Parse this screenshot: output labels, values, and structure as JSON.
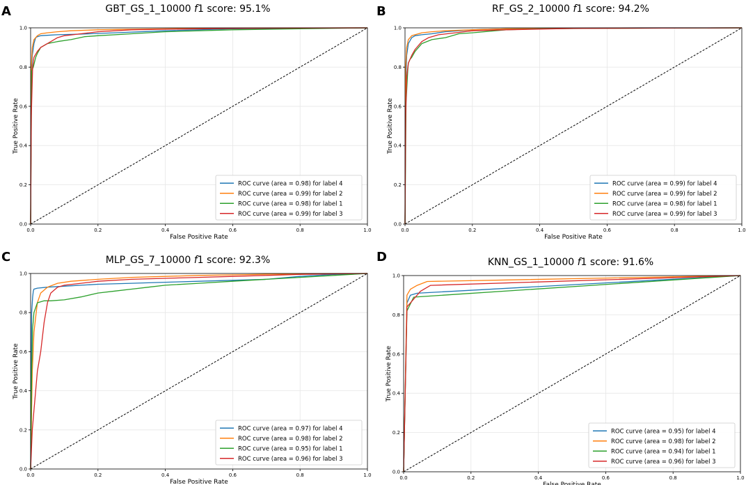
{
  "colors": {
    "label4": "#1f77b4",
    "label2": "#ff7f0e",
    "label1": "#2ca02c",
    "label3": "#d62728",
    "chance": "#000000"
  },
  "chart_data": [
    {
      "panel": "A",
      "type": "line",
      "title_parts": {
        "prefix": "GBT_GS_1_10000 ",
        "italic": "f",
        "suffix": "1 score: 95.1%"
      },
      "xlabel": "False Positive Rate",
      "ylabel": "True Positive Rate",
      "xlim": [
        0,
        1
      ],
      "ylim": [
        0,
        1
      ],
      "xticks": [
        "0.0",
        "0.2",
        "0.4",
        "0.6",
        "0.8",
        "1.0"
      ],
      "yticks": [
        "0.0",
        "0.2",
        "0.4",
        "0.6",
        "0.8",
        "1.0"
      ],
      "legend_position": "lower-right",
      "series": [
        {
          "name": "ROC curve (area = 0.98) for label 4",
          "color_key": "label4",
          "x": [
            0,
            0.002,
            0.005,
            0.01,
            0.015,
            0.02,
            0.03,
            0.05,
            0.08,
            0.15,
            0.25,
            0.4,
            0.6,
            0.8,
            1.0
          ],
          "y": [
            0,
            0.75,
            0.86,
            0.92,
            0.95,
            0.955,
            0.96,
            0.962,
            0.965,
            0.968,
            0.975,
            0.985,
            0.995,
            0.998,
            1.0
          ]
        },
        {
          "name": "ROC curve (area = 0.99) for label 2",
          "color_key": "label2",
          "x": [
            0,
            0.002,
            0.005,
            0.01,
            0.02,
            0.03,
            0.05,
            0.08,
            0.12,
            0.2,
            0.3,
            0.5,
            0.7,
            1.0
          ],
          "y": [
            0,
            0.8,
            0.9,
            0.94,
            0.96,
            0.97,
            0.975,
            0.98,
            0.985,
            0.99,
            0.993,
            0.997,
            0.999,
            1.0
          ]
        },
        {
          "name": "ROC curve (area = 0.98) for label 1",
          "color_key": "label1",
          "x": [
            0,
            0.003,
            0.008,
            0.015,
            0.02,
            0.03,
            0.05,
            0.08,
            0.12,
            0.16,
            0.2,
            0.3,
            0.4,
            0.6,
            0.8,
            1.0
          ],
          "y": [
            0,
            0.78,
            0.8,
            0.85,
            0.87,
            0.9,
            0.92,
            0.93,
            0.94,
            0.955,
            0.96,
            0.97,
            0.98,
            0.99,
            0.995,
            1.0
          ]
        },
        {
          "name": "ROC curve (area = 0.99) for label 3",
          "color_key": "label3",
          "x": [
            0,
            0.002,
            0.006,
            0.01,
            0.02,
            0.03,
            0.05,
            0.08,
            0.1,
            0.15,
            0.2,
            0.3,
            0.4,
            0.6,
            0.8,
            1.0
          ],
          "y": [
            0,
            0.55,
            0.8,
            0.85,
            0.88,
            0.9,
            0.92,
            0.95,
            0.96,
            0.97,
            0.98,
            0.99,
            0.993,
            0.997,
            0.999,
            1.0
          ]
        }
      ]
    },
    {
      "panel": "B",
      "type": "line",
      "title_parts": {
        "prefix": "RF_GS_2_10000 ",
        "italic": "f",
        "suffix": "1 score: 94.2%"
      },
      "xlabel": "False Positive Rate",
      "ylabel": "True Positive Rate",
      "xlim": [
        0,
        1
      ],
      "ylim": [
        0,
        1
      ],
      "xticks": [
        "0.0",
        "0.2",
        "0.4",
        "0.6",
        "0.8",
        "1.0"
      ],
      "yticks": [
        "0.0",
        "0.2",
        "0.4",
        "0.6",
        "0.8",
        "1.0"
      ],
      "legend_position": "lower-right",
      "series": [
        {
          "name": "ROC curve (area = 0.99) for label 4",
          "color_key": "label4",
          "x": [
            0,
            0.002,
            0.005,
            0.01,
            0.02,
            0.03,
            0.05,
            0.08,
            0.12,
            0.2,
            0.3,
            0.5,
            0.7,
            1.0
          ],
          "y": [
            0,
            0.7,
            0.86,
            0.92,
            0.95,
            0.96,
            0.965,
            0.97,
            0.98,
            0.99,
            0.995,
            0.998,
            1.0,
            1.0
          ]
        },
        {
          "name": "ROC curve (area = 0.99) for label 2",
          "color_key": "label2",
          "x": [
            0,
            0.002,
            0.005,
            0.01,
            0.02,
            0.03,
            0.05,
            0.08,
            0.12,
            0.2,
            0.3,
            0.5,
            1.0
          ],
          "y": [
            0,
            0.8,
            0.9,
            0.94,
            0.96,
            0.965,
            0.975,
            0.98,
            0.985,
            0.99,
            0.995,
            0.998,
            1.0
          ]
        },
        {
          "name": "ROC curve (area = 0.98) for label 1",
          "color_key": "label1",
          "x": [
            0,
            0.003,
            0.008,
            0.01,
            0.015,
            0.02,
            0.03,
            0.05,
            0.08,
            0.12,
            0.16,
            0.2,
            0.3,
            0.4,
            0.6,
            1.0
          ],
          "y": [
            0,
            0.62,
            0.78,
            0.82,
            0.84,
            0.85,
            0.88,
            0.92,
            0.94,
            0.95,
            0.97,
            0.975,
            0.99,
            0.995,
            0.998,
            1.0
          ]
        },
        {
          "name": "ROC curve (area = 0.99) for label 3",
          "color_key": "label3",
          "x": [
            0,
            0.002,
            0.005,
            0.01,
            0.02,
            0.03,
            0.05,
            0.07,
            0.1,
            0.15,
            0.2,
            0.3,
            0.5,
            1.0
          ],
          "y": [
            0,
            0.55,
            0.75,
            0.82,
            0.86,
            0.89,
            0.93,
            0.95,
            0.965,
            0.975,
            0.985,
            0.99,
            0.997,
            1.0
          ]
        }
      ]
    },
    {
      "panel": "C",
      "type": "line",
      "title_parts": {
        "prefix": "MLP_GS_7_10000 ",
        "italic": "f",
        "suffix": "1 score: 92.3%"
      },
      "xlabel": "False Positive Rate",
      "ylabel": "True Positive Rate",
      "xlim": [
        0,
        1
      ],
      "ylim": [
        0,
        1
      ],
      "xticks": [
        "0.0",
        "0.2",
        "0.4",
        "0.6",
        "0.8",
        "1.0"
      ],
      "yticks": [
        "0.0",
        "0.2",
        "0.4",
        "0.6",
        "0.8",
        "1.0"
      ],
      "legend_position": "lower-right",
      "series": [
        {
          "name": "ROC curve (area = 0.97) for label 4",
          "color_key": "label4",
          "x": [
            0,
            0.003,
            0.006,
            0.008,
            0.01,
            0.02,
            0.05,
            0.1,
            0.15,
            0.2,
            0.3,
            0.4,
            0.5,
            0.6,
            0.7,
            0.8,
            0.9,
            1.0
          ],
          "y": [
            0,
            0.8,
            0.88,
            0.91,
            0.92,
            0.925,
            0.93,
            0.935,
            0.94,
            0.945,
            0.95,
            0.955,
            0.96,
            0.965,
            0.97,
            0.985,
            0.995,
            1.0
          ]
        },
        {
          "name": "ROC curve (area = 0.98) for label 2",
          "color_key": "label2",
          "x": [
            0,
            0.005,
            0.01,
            0.02,
            0.03,
            0.05,
            0.08,
            0.12,
            0.2,
            0.3,
            0.4,
            0.5,
            0.6,
            0.7,
            0.8,
            1.0
          ],
          "y": [
            0,
            0.5,
            0.7,
            0.85,
            0.9,
            0.93,
            0.95,
            0.96,
            0.97,
            0.98,
            0.985,
            0.99,
            0.993,
            0.996,
            0.998,
            1.0
          ]
        },
        {
          "name": "ROC curve (area = 0.95) for label 1",
          "color_key": "label1",
          "x": [
            0,
            0.003,
            0.006,
            0.01,
            0.02,
            0.04,
            0.06,
            0.1,
            0.15,
            0.2,
            0.25,
            0.3,
            0.35,
            0.4,
            0.5,
            0.6,
            0.7,
            0.8,
            0.9,
            1.0
          ],
          "y": [
            0,
            0.5,
            0.72,
            0.8,
            0.85,
            0.86,
            0.86,
            0.865,
            0.88,
            0.9,
            0.91,
            0.92,
            0.93,
            0.94,
            0.95,
            0.96,
            0.97,
            0.98,
            0.99,
            1.0
          ]
        },
        {
          "name": "ROC curve (area = 0.96) for label 3",
          "color_key": "label3",
          "x": [
            0,
            0.005,
            0.01,
            0.02,
            0.03,
            0.04,
            0.05,
            0.06,
            0.08,
            0.1,
            0.15,
            0.2,
            0.3,
            0.4,
            0.5,
            0.6,
            0.7,
            0.8,
            0.9,
            1.0
          ],
          "y": [
            0,
            0.2,
            0.3,
            0.5,
            0.6,
            0.75,
            0.85,
            0.9,
            0.93,
            0.94,
            0.95,
            0.96,
            0.97,
            0.975,
            0.98,
            0.985,
            0.99,
            0.995,
            0.998,
            1.0
          ]
        }
      ]
    },
    {
      "panel": "D",
      "type": "line",
      "title_parts": {
        "prefix": "KNN_GS_1_10000 ",
        "italic": "f",
        "suffix": "1 score: 91.6%"
      },
      "xlabel": "False Positive Rate",
      "ylabel": "True Positive Rate",
      "xlim": [
        0,
        1
      ],
      "ylim": [
        0,
        1
      ],
      "xticks": [
        "0.0",
        "0.2",
        "0.4",
        "0.6",
        "0.8",
        "1.0"
      ],
      "yticks": [
        "0.0",
        "0.2",
        "0.4",
        "0.6",
        "0.8",
        "1.0"
      ],
      "legend_position": "lower-right",
      "series": [
        {
          "name": "ROC curve (area = 0.95) for label 4",
          "color_key": "label4",
          "x": [
            0,
            0.01,
            0.02,
            0.04,
            1.0
          ],
          "y": [
            0,
            0.86,
            0.9,
            0.91,
            1.0
          ]
        },
        {
          "name": "ROC curve (area = 0.98) for label 2",
          "color_key": "label2",
          "x": [
            0,
            0.01,
            0.02,
            0.04,
            0.07,
            1.0
          ],
          "y": [
            0,
            0.9,
            0.93,
            0.95,
            0.97,
            1.0
          ]
        },
        {
          "name": "ROC curve (area = 0.94) for label 1",
          "color_key": "label1",
          "x": [
            0,
            0.01,
            0.03,
            1.0
          ],
          "y": [
            0,
            0.82,
            0.89,
            1.0
          ]
        },
        {
          "name": "ROC curve (area = 0.96) for label 3",
          "color_key": "label3",
          "x": [
            0,
            0.01,
            0.03,
            0.05,
            0.08,
            1.0
          ],
          "y": [
            0,
            0.84,
            0.88,
            0.92,
            0.95,
            1.0
          ]
        }
      ]
    }
  ]
}
